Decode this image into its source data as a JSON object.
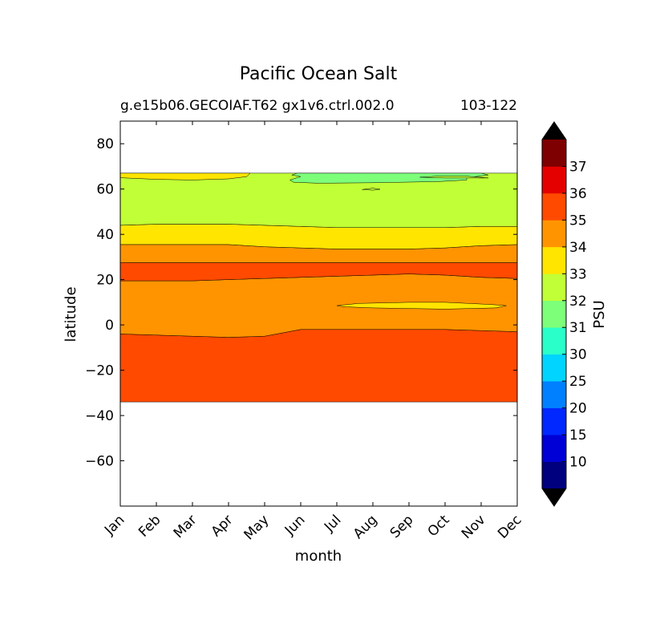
{
  "chart_data": {
    "type": "heatmap",
    "subtype": "filled-contour",
    "title": "Pacific Ocean Salt",
    "subtitle_left": "g.e15b06.GECOIAF.T62 gx1v6.ctrl.002.0",
    "subtitle_right": "103-122",
    "xlabel": "month",
    "ylabel": "latitude",
    "x_categories": [
      "Jan",
      "Feb",
      "Mar",
      "Apr",
      "May",
      "Jun",
      "Jul",
      "Aug",
      "Sep",
      "Oct",
      "Nov",
      "Dec"
    ],
    "x_values": [
      0,
      1,
      2,
      3,
      4,
      5,
      6,
      7,
      8,
      9,
      10,
      11
    ],
    "xlim": [
      0,
      11
    ],
    "ylim": [
      -80,
      90
    ],
    "yticks": [
      80,
      60,
      40,
      20,
      0,
      -20,
      -40,
      -60
    ],
    "ytick_labels": [
      "80",
      "60",
      "40",
      "20",
      "0",
      "−20",
      "−40",
      "−60"
    ],
    "data_extent": {
      "lat_min": -34,
      "lat_max": 67
    },
    "contour_levels": [
      10,
      15,
      20,
      25,
      30,
      31,
      32,
      33,
      34,
      35,
      36,
      37
    ],
    "colorbar": {
      "label": "PSU",
      "tick_labels": [
        "10",
        "15",
        "20",
        "25",
        "30",
        "31",
        "32",
        "33",
        "34",
        "35",
        "36",
        "37"
      ],
      "band_colors": [
        "#00007f",
        "#0000d6",
        "#0028ff",
        "#0080ff",
        "#00d4ff",
        "#2bffc9",
        "#7dff7a",
        "#c1ff36",
        "#ffe500",
        "#ff9400",
        "#ff4a00",
        "#e50000",
        "#7f0000"
      ],
      "extend": "both",
      "under_color": "#000000",
      "over_color": "#000000"
    },
    "regions": [
      {
        "name": "band-south-35-36",
        "salinity_range": [
          35,
          36
        ],
        "color": "#ff4a00",
        "lat_bottom": [
          -34,
          -34,
          -34,
          -34,
          -34,
          -34,
          -34,
          -34,
          -34,
          -34,
          -34,
          -34
        ],
        "lat_top": [
          -4,
          -4.5,
          -5,
          -5.5,
          -5,
          -2,
          -2,
          -2,
          -2,
          -2,
          -2.5,
          -3
        ]
      },
      {
        "name": "band-equator-34-35",
        "salinity_range": [
          34,
          35
        ],
        "color": "#ff9400",
        "lat_bottom": [
          -4,
          -4.5,
          -5,
          -5.5,
          -5,
          -2,
          -2,
          -2,
          -2,
          -2,
          -2.5,
          -3
        ],
        "lat_top": [
          19.5,
          19.5,
          19.5,
          20,
          20.5,
          21,
          21.5,
          22,
          22.5,
          22,
          21,
          20.5
        ]
      },
      {
        "name": "band-20N-35-36",
        "salinity_range": [
          35,
          36
        ],
        "color": "#ff4a00",
        "lat_bottom": [
          19.5,
          19.5,
          19.5,
          20,
          20.5,
          21,
          21.5,
          22,
          22.5,
          22,
          21,
          20.5
        ],
        "lat_top": [
          27.5,
          27.5,
          27.5,
          27.5,
          27.5,
          27.5,
          27.5,
          27.5,
          27.5,
          27.5,
          27.5,
          27.5
        ]
      },
      {
        "name": "band-30N-34-35",
        "salinity_range": [
          34,
          35
        ],
        "color": "#ff9400",
        "lat_bottom": [
          27.5,
          27.5,
          27.5,
          27.5,
          27.5,
          27.5,
          27.5,
          27.5,
          27.5,
          27.5,
          27.5,
          27.5
        ],
        "lat_top": [
          35.5,
          35.5,
          35.5,
          35.5,
          34.5,
          34,
          33.5,
          33.5,
          33.5,
          34,
          35,
          35.5
        ]
      },
      {
        "name": "band-40N-33-34",
        "salinity_range": [
          33,
          34
        ],
        "color": "#ffe500",
        "lat_bottom": [
          35.5,
          35.5,
          35.5,
          35.5,
          34.5,
          34,
          33.5,
          33.5,
          33.5,
          34,
          35,
          35.5
        ],
        "lat_top": [
          44,
          44.5,
          44.5,
          44.5,
          44,
          43.5,
          43,
          43,
          43,
          43,
          43.5,
          43.5
        ]
      },
      {
        "name": "band-north-32-33",
        "salinity_range": [
          32,
          33
        ],
        "color": "#c1ff36",
        "lat_bottom": [
          44,
          44.5,
          44.5,
          44.5,
          44,
          43.5,
          43,
          43,
          43,
          43,
          43.5,
          43.5
        ],
        "lat_top": [
          67,
          67,
          67,
          67,
          67,
          67,
          67,
          67,
          67,
          67,
          67,
          67
        ]
      }
    ],
    "patches": [
      {
        "name": "patch-33-34-northwest",
        "salinity_range": [
          33,
          34
        ],
        "color": "#ffe500",
        "points": [
          [
            0,
            67
          ],
          [
            3.6,
            67
          ],
          [
            3.5,
            65.5
          ],
          [
            3,
            64.5
          ],
          [
            2,
            64
          ],
          [
            1,
            64.3
          ],
          [
            0,
            65
          ]
        ]
      },
      {
        "name": "patch-31-32-north",
        "salinity_range": [
          31,
          32
        ],
        "color": "#7dff7a",
        "points": [
          [
            4.9,
            67
          ],
          [
            10,
            67
          ],
          [
            10.2,
            66.2
          ],
          [
            9.6,
            65
          ],
          [
            9.6,
            64
          ],
          [
            8.8,
            63.3
          ],
          [
            7,
            62.8
          ],
          [
            5.5,
            62.6
          ],
          [
            4.8,
            63
          ],
          [
            4.7,
            64
          ],
          [
            5,
            65.5
          ],
          [
            4.75,
            66.2
          ]
        ]
      },
      {
        "name": "patch-32-33-inner",
        "salinity_range": [
          32,
          33
        ],
        "color": "#c1ff36",
        "points": [
          [
            8.3,
            65.2
          ],
          [
            9,
            64.9
          ],
          [
            10.2,
            64.9
          ],
          [
            9.5,
            65.8
          ],
          [
            8.8,
            65.7
          ]
        ]
      },
      {
        "name": "patch-32-33-tiny",
        "salinity_range": [
          32,
          33
        ],
        "color": "#c1ff36",
        "points": [
          [
            6.7,
            59.8
          ],
          [
            7,
            60.4
          ],
          [
            7.2,
            59.9
          ],
          [
            7,
            59.5
          ]
        ]
      },
      {
        "name": "patch-33-34-equatorial",
        "salinity_range": [
          33,
          34
        ],
        "color": "#ffe500",
        "points": [
          [
            6,
            8.5
          ],
          [
            6.6,
            9.5
          ],
          [
            8,
            10
          ],
          [
            9,
            10
          ],
          [
            10.3,
            9
          ],
          [
            10.7,
            8.5
          ],
          [
            10.4,
            7.5
          ],
          [
            9,
            7
          ],
          [
            7,
            7.5
          ],
          [
            6.2,
            8
          ]
        ]
      }
    ]
  }
}
